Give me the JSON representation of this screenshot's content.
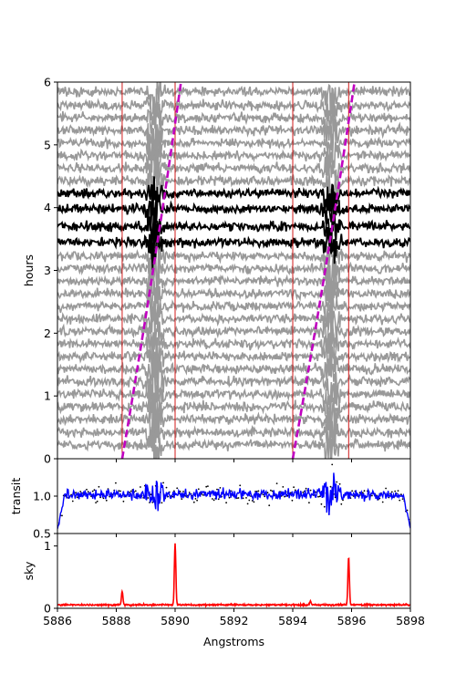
{
  "chart_data": [
    {
      "id": "main",
      "type": "line",
      "xlabel": "",
      "ylabel": "hours",
      "xlim": [
        5886,
        5898
      ],
      "ylim": [
        0,
        6
      ],
      "yticks": [
        0,
        1,
        2,
        3,
        4,
        5,
        6
      ],
      "yticklabels": [
        "0",
        "1",
        "2",
        "3",
        "4",
        "5",
        "6"
      ],
      "show_xticklabels": false,
      "spectra": {
        "baseline_hours": [
          0.22,
          0.42,
          0.63,
          0.83,
          1.03,
          1.23,
          1.43,
          1.63,
          1.83,
          2.03,
          2.23,
          2.43,
          2.63,
          2.83,
          3.03,
          3.23,
          3.45,
          3.7,
          3.98,
          4.23,
          4.43,
          4.63,
          4.83,
          5.03,
          5.23,
          5.43,
          5.63,
          5.85
        ],
        "in_transit_hours": [
          3.2,
          3.45,
          3.7,
          3.98,
          4.23
        ],
        "in_transit_color": "#000000",
        "out_of_transit_color": "#999999"
      },
      "absorption_centers": [
        5889.3,
        5895.3
      ],
      "vertical_lines": [
        5888.2,
        5890.0,
        5894.0,
        5895.9
      ],
      "vertical_line_color": "#cc0000",
      "dashed_tracks": [
        {
          "x_at_ylim": [
            5888.2,
            5890.2
          ]
        },
        {
          "x_at_ylim": [
            5894.0,
            5896.1
          ]
        }
      ],
      "dashed_color": "#c000c0"
    },
    {
      "id": "transit",
      "type": "line",
      "ylabel": "transit",
      "xlim": [
        5886,
        5898
      ],
      "ylim": [
        0.5,
        1.5
      ],
      "yticks": [
        0.5,
        1.0
      ],
      "yticklabels": [
        "0.5",
        "1.0"
      ],
      "show_xticklabels": false,
      "series": [
        {
          "color": "#0000ff"
        }
      ],
      "scatter_color": "#000000"
    },
    {
      "id": "sky",
      "type": "line",
      "ylabel": "sky",
      "xlabel": "Angstroms",
      "xlim": [
        5886,
        5898
      ],
      "ylim": [
        0,
        1.2
      ],
      "yticks": [
        0,
        1
      ],
      "yticklabels": [
        "0",
        "1"
      ],
      "xticks": [
        5886,
        5888,
        5890,
        5892,
        5894,
        5896,
        5898
      ],
      "xticklabels": [
        "5886",
        "5888",
        "5890",
        "5892",
        "5894",
        "5896",
        "5898"
      ],
      "emission_lines": [
        {
          "x": 5888.2,
          "peak": 0.22
        },
        {
          "x": 5890.0,
          "peak": 1.0
        },
        {
          "x": 5894.6,
          "peak": 0.06
        },
        {
          "x": 5895.9,
          "peak": 0.77
        }
      ],
      "series": [
        {
          "color": "#ff0000"
        }
      ]
    }
  ]
}
